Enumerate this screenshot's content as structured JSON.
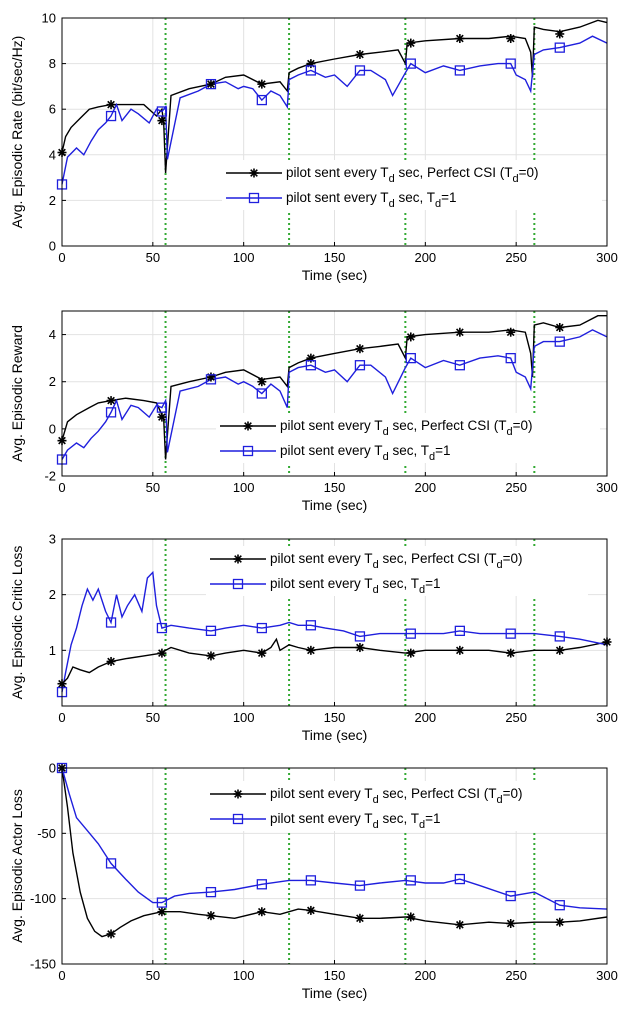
{
  "chart_data": [
    {
      "type": "line",
      "xlabel": "Time (sec)",
      "ylabel": "Avg. Episodic Rate (bit/sec/Hz)",
      "xlim": [
        0,
        300
      ],
      "ylim": [
        0,
        10
      ],
      "xticks": [
        0,
        50,
        100,
        150,
        200,
        250,
        300
      ],
      "yticks": [
        0,
        2,
        4,
        6,
        8,
        10
      ],
      "grid": true,
      "legend_position": "center-right",
      "vlines": [
        57,
        125,
        189,
        260
      ],
      "series": [
        {
          "name_prefix": "pilot sent every T",
          "name_sub": "d",
          "name_suffix": " sec, Perfect CSI (T",
          "name_sub2": "d",
          "name_end": "=0)",
          "color": "#000000",
          "marker": "star",
          "x": [
            0,
            2,
            5,
            10,
            15,
            20,
            27,
            35,
            45,
            52,
            55,
            56,
            57,
            60,
            70,
            82,
            90,
            100,
            110,
            120,
            124,
            125,
            130,
            137,
            150,
            164,
            175,
            185,
            189,
            190,
            200,
            219,
            235,
            247,
            255,
            258,
            259,
            260,
            265,
            274,
            285,
            295,
            300
          ],
          "y": [
            4.1,
            4.8,
            5.2,
            5.6,
            6.0,
            6.1,
            6.2,
            6.2,
            6.2,
            5.7,
            6.0,
            5.4,
            3.2,
            6.6,
            6.9,
            7.1,
            7.4,
            7.5,
            7.1,
            7.2,
            6.8,
            7.6,
            7.8,
            8.0,
            8.2,
            8.4,
            8.5,
            8.6,
            8.0,
            8.9,
            9.0,
            9.1,
            9.1,
            9.2,
            9.1,
            8.5,
            7.4,
            9.6,
            9.5,
            9.4,
            9.6,
            9.9,
            9.8
          ],
          "markers_x": [
            0,
            27,
            55,
            82,
            110,
            137,
            164,
            192,
            219,
            247,
            274
          ],
          "markers_y": [
            4.1,
            6.2,
            5.5,
            7.1,
            7.1,
            8.0,
            8.4,
            8.9,
            9.1,
            9.1,
            9.3
          ]
        },
        {
          "name_prefix": "pilot sent every T",
          "name_sub": "d",
          "name_suffix": " sec, T",
          "name_sub2": "d",
          "name_end": "=1",
          "color": "#1f1fdd",
          "marker": "square",
          "x": [
            0,
            3,
            8,
            12,
            16,
            20,
            24,
            27,
            30,
            33,
            38,
            42,
            48,
            52,
            55,
            57,
            58,
            65,
            75,
            82,
            90,
            97,
            100,
            105,
            110,
            115,
            120,
            124,
            125,
            130,
            137,
            145,
            150,
            157,
            164,
            170,
            178,
            182,
            189,
            192,
            200,
            210,
            219,
            230,
            240,
            247,
            250,
            255,
            258,
            260,
            265,
            274,
            285,
            292,
            300
          ],
          "y": [
            2.7,
            3.9,
            4.3,
            4.0,
            4.6,
            5.1,
            5.4,
            5.7,
            6.2,
            5.5,
            6.0,
            5.8,
            5.4,
            6.0,
            5.9,
            6.1,
            3.8,
            6.5,
            6.8,
            7.1,
            7.2,
            6.9,
            7.0,
            6.9,
            6.4,
            6.8,
            6.6,
            6.1,
            7.3,
            7.5,
            7.7,
            7.4,
            7.5,
            7.0,
            7.7,
            7.7,
            7.3,
            6.6,
            7.6,
            8.0,
            7.6,
            7.9,
            7.7,
            7.9,
            8.0,
            8.0,
            7.5,
            7.3,
            6.8,
            8.4,
            8.6,
            8.7,
            8.9,
            9.2,
            8.9
          ],
          "markers_x": [
            0,
            27,
            55,
            82,
            110,
            137,
            164,
            192,
            219,
            247,
            274
          ],
          "markers_y": [
            2.7,
            5.7,
            5.9,
            7.1,
            6.4,
            7.7,
            7.7,
            8.0,
            7.7,
            8.0,
            8.7
          ]
        }
      ]
    },
    {
      "type": "line",
      "xlabel": "Time (sec)",
      "ylabel": "Avg. Episodic Reward",
      "xlim": [
        0,
        300
      ],
      "ylim": [
        -2,
        5
      ],
      "xticks": [
        0,
        50,
        100,
        150,
        200,
        250,
        300
      ],
      "yticks": [
        -2,
        0,
        2,
        4
      ],
      "grid": true,
      "legend_position": "lower-right",
      "vlines": [
        57,
        125,
        189,
        260
      ],
      "series": [
        {
          "name_prefix": "pilot sent every T",
          "name_sub": "d",
          "name_suffix": " sec, Perfect CSI (T",
          "name_sub2": "d",
          "name_end": "=0)",
          "color": "#000000",
          "marker": "star",
          "x": [
            0,
            3,
            8,
            15,
            20,
            27,
            35,
            45,
            52,
            55,
            56,
            57,
            60,
            70,
            82,
            90,
            100,
            110,
            120,
            124,
            125,
            130,
            137,
            150,
            164,
            175,
            185,
            189,
            190,
            200,
            219,
            235,
            247,
            255,
            258,
            259,
            260,
            265,
            274,
            285,
            295,
            300
          ],
          "y": [
            -0.5,
            0.3,
            0.6,
            0.9,
            1.1,
            1.2,
            1.3,
            1.2,
            1.1,
            0.6,
            0.4,
            -1.3,
            1.8,
            2.0,
            2.2,
            2.4,
            2.5,
            2.1,
            2.2,
            1.8,
            2.6,
            2.8,
            3.0,
            3.2,
            3.4,
            3.5,
            3.6,
            3.0,
            3.9,
            4.0,
            4.1,
            4.1,
            4.2,
            4.1,
            3.2,
            2.2,
            4.4,
            4.5,
            4.3,
            4.4,
            4.8,
            4.8
          ],
          "markers_x": [
            0,
            27,
            55,
            82,
            110,
            137,
            164,
            192,
            219,
            247,
            274
          ],
          "markers_y": [
            -0.5,
            1.2,
            0.5,
            2.2,
            2.0,
            3.0,
            3.4,
            3.9,
            4.1,
            4.1,
            4.3
          ]
        },
        {
          "name_prefix": "pilot sent every T",
          "name_sub": "d",
          "name_suffix": " sec, T",
          "name_sub2": "d",
          "name_end": "=1",
          "color": "#1f1fdd",
          "marker": "square",
          "x": [
            0,
            3,
            8,
            12,
            16,
            20,
            24,
            27,
            30,
            33,
            38,
            42,
            48,
            52,
            55,
            57,
            58,
            65,
            75,
            82,
            90,
            97,
            100,
            105,
            110,
            115,
            120,
            124,
            125,
            130,
            137,
            145,
            150,
            157,
            164,
            170,
            178,
            182,
            189,
            192,
            200,
            210,
            219,
            230,
            240,
            247,
            250,
            255,
            258,
            260,
            265,
            274,
            285,
            292,
            300
          ],
          "y": [
            -1.3,
            -0.9,
            -0.6,
            -0.8,
            -0.4,
            -0.1,
            0.3,
            0.7,
            1.2,
            0.4,
            1.0,
            0.9,
            0.5,
            1.0,
            0.9,
            1.2,
            -1.0,
            1.6,
            1.8,
            2.1,
            2.2,
            1.9,
            2.0,
            1.8,
            1.5,
            1.9,
            1.6,
            0.9,
            2.4,
            2.6,
            2.7,
            2.4,
            2.5,
            2.0,
            2.7,
            2.7,
            2.2,
            1.5,
            2.6,
            3.0,
            2.6,
            2.9,
            2.7,
            3.0,
            3.1,
            3.0,
            2.4,
            2.2,
            1.7,
            3.5,
            3.7,
            3.7,
            3.9,
            4.2,
            3.9
          ],
          "markers_x": [
            0,
            27,
            55,
            82,
            110,
            137,
            164,
            192,
            219,
            247,
            274
          ],
          "markers_y": [
            -1.3,
            0.7,
            0.9,
            2.1,
            1.5,
            2.7,
            2.7,
            3.0,
            2.7,
            3.0,
            3.7
          ]
        }
      ]
    },
    {
      "type": "line",
      "xlabel": "Time (sec)",
      "ylabel": "Avg. Episodic Critic Loss",
      "xlim": [
        0,
        300
      ],
      "ylim": [
        0,
        3
      ],
      "xticks": [
        0,
        50,
        100,
        150,
        200,
        250,
        300
      ],
      "yticks": [
        1,
        2,
        3
      ],
      "grid": true,
      "legend_position": "top-right",
      "vlines": [
        57,
        125,
        189,
        260
      ],
      "series": [
        {
          "name_prefix": "pilot sent every T",
          "name_sub": "d",
          "name_suffix": " sec, Perfect CSI (T",
          "name_sub2": "d",
          "name_end": "=0)",
          "color": "#000000",
          "marker": "star",
          "x": [
            0,
            3,
            6,
            10,
            15,
            20,
            27,
            35,
            45,
            55,
            57,
            60,
            70,
            82,
            90,
            100,
            110,
            115,
            118,
            120,
            125,
            130,
            137,
            150,
            164,
            175,
            189,
            200,
            219,
            235,
            247,
            260,
            274,
            285,
            300
          ],
          "y": [
            0.4,
            0.5,
            0.7,
            0.65,
            0.6,
            0.7,
            0.8,
            0.85,
            0.9,
            0.95,
            1.0,
            1.05,
            0.95,
            0.9,
            0.95,
            1.0,
            0.95,
            1.05,
            1.2,
            1.0,
            1.1,
            1.05,
            1.0,
            1.05,
            1.05,
            1.0,
            0.95,
            1.0,
            1.0,
            1.0,
            0.95,
            1.0,
            1.0,
            1.05,
            1.15
          ],
          "markers_x": [
            0,
            27,
            55,
            82,
            110,
            137,
            164,
            192,
            219,
            247,
            274,
            300
          ],
          "markers_y": [
            0.4,
            0.8,
            0.95,
            0.9,
            0.95,
            1.0,
            1.05,
            0.95,
            1.0,
            0.95,
            1.0,
            1.15
          ]
        },
        {
          "name_prefix": "pilot sent every T",
          "name_sub": "d",
          "name_suffix": " sec, T",
          "name_sub2": "d",
          "name_end": "=1",
          "color": "#1f1fdd",
          "marker": "square",
          "x": [
            0,
            2,
            5,
            8,
            11,
            14,
            17,
            20,
            24,
            27,
            30,
            33,
            36,
            40,
            44,
            47,
            50,
            52,
            55,
            60,
            70,
            82,
            90,
            100,
            110,
            120,
            125,
            130,
            137,
            145,
            155,
            164,
            175,
            189,
            200,
            210,
            219,
            230,
            247,
            260,
            274,
            285,
            300
          ],
          "y": [
            0.25,
            0.6,
            1.1,
            1.4,
            1.8,
            2.1,
            1.9,
            2.1,
            1.7,
            1.5,
            2.0,
            1.6,
            1.8,
            2.0,
            1.7,
            2.3,
            2.4,
            1.8,
            1.4,
            1.45,
            1.4,
            1.35,
            1.4,
            1.45,
            1.4,
            1.45,
            1.5,
            1.45,
            1.45,
            1.4,
            1.35,
            1.25,
            1.3,
            1.3,
            1.3,
            1.3,
            1.35,
            1.3,
            1.3,
            1.3,
            1.25,
            1.2,
            1.1
          ],
          "markers_x": [
            0,
            27,
            55,
            82,
            110,
            137,
            164,
            192,
            219,
            247,
            274
          ],
          "markers_y": [
            0.25,
            1.5,
            1.4,
            1.35,
            1.4,
            1.45,
            1.25,
            1.3,
            1.35,
            1.3,
            1.25
          ]
        }
      ]
    },
    {
      "type": "line",
      "xlabel": "Time (sec)",
      "ylabel": "Avg. Episodic Actor Loss",
      "xlim": [
        0,
        300
      ],
      "ylim": [
        -150,
        0
      ],
      "xticks": [
        0,
        50,
        100,
        150,
        200,
        250,
        300
      ],
      "yticks": [
        -150,
        -100,
        -50,
        0
      ],
      "grid": true,
      "legend_position": "top-right",
      "vlines": [
        57,
        125,
        189,
        260
      ],
      "series": [
        {
          "name_prefix": "pilot sent every T",
          "name_sub": "d",
          "name_suffix": " sec, Perfect CSI (T",
          "name_sub2": "d",
          "name_end": "=0)",
          "color": "#000000",
          "marker": "star",
          "x": [
            0,
            3,
            6,
            10,
            14,
            18,
            22,
            27,
            32,
            38,
            45,
            55,
            65,
            75,
            82,
            95,
            110,
            120,
            130,
            137,
            150,
            164,
            175,
            189,
            200,
            219,
            235,
            247,
            260,
            274,
            285,
            300
          ],
          "y": [
            0,
            -30,
            -65,
            -95,
            -115,
            -125,
            -129,
            -127,
            -122,
            -117,
            -113,
            -110,
            -110,
            -112,
            -113,
            -115,
            -110,
            -112,
            -108,
            -109,
            -112,
            -115,
            -115,
            -114,
            -117,
            -120,
            -118,
            -119,
            -118,
            -118,
            -117,
            -114
          ],
          "markers_x": [
            0,
            27,
            55,
            82,
            110,
            137,
            164,
            192,
            219,
            247,
            274
          ],
          "markers_y": [
            0,
            -127,
            -110,
            -113,
            -110,
            -109,
            -115,
            -114,
            -120,
            -119,
            -118
          ]
        },
        {
          "name_prefix": "pilot sent every T",
          "name_sub": "d",
          "name_suffix": " sec, T",
          "name_sub2": "d",
          "name_end": "=1",
          "color": "#1f1fdd",
          "marker": "square",
          "x": [
            0,
            4,
            8,
            14,
            20,
            27,
            35,
            42,
            50,
            55,
            62,
            70,
            82,
            95,
            110,
            125,
            137,
            150,
            164,
            175,
            189,
            200,
            210,
            219,
            230,
            247,
            260,
            274,
            285,
            300
          ],
          "y": [
            0,
            -20,
            -38,
            -48,
            -58,
            -73,
            -85,
            -95,
            -103,
            -103,
            -98,
            -96,
            -95,
            -93,
            -89,
            -86,
            -86,
            -88,
            -90,
            -88,
            -86,
            -88,
            -88,
            -85,
            -90,
            -98,
            -95,
            -105,
            -107,
            -108
          ],
          "markers_x": [
            0,
            27,
            55,
            82,
            110,
            137,
            164,
            192,
            219,
            247,
            274
          ],
          "markers_y": [
            0,
            -73,
            -103,
            -95,
            -89,
            -86,
            -90,
            -86,
            -85,
            -98,
            -105
          ]
        }
      ]
    }
  ]
}
